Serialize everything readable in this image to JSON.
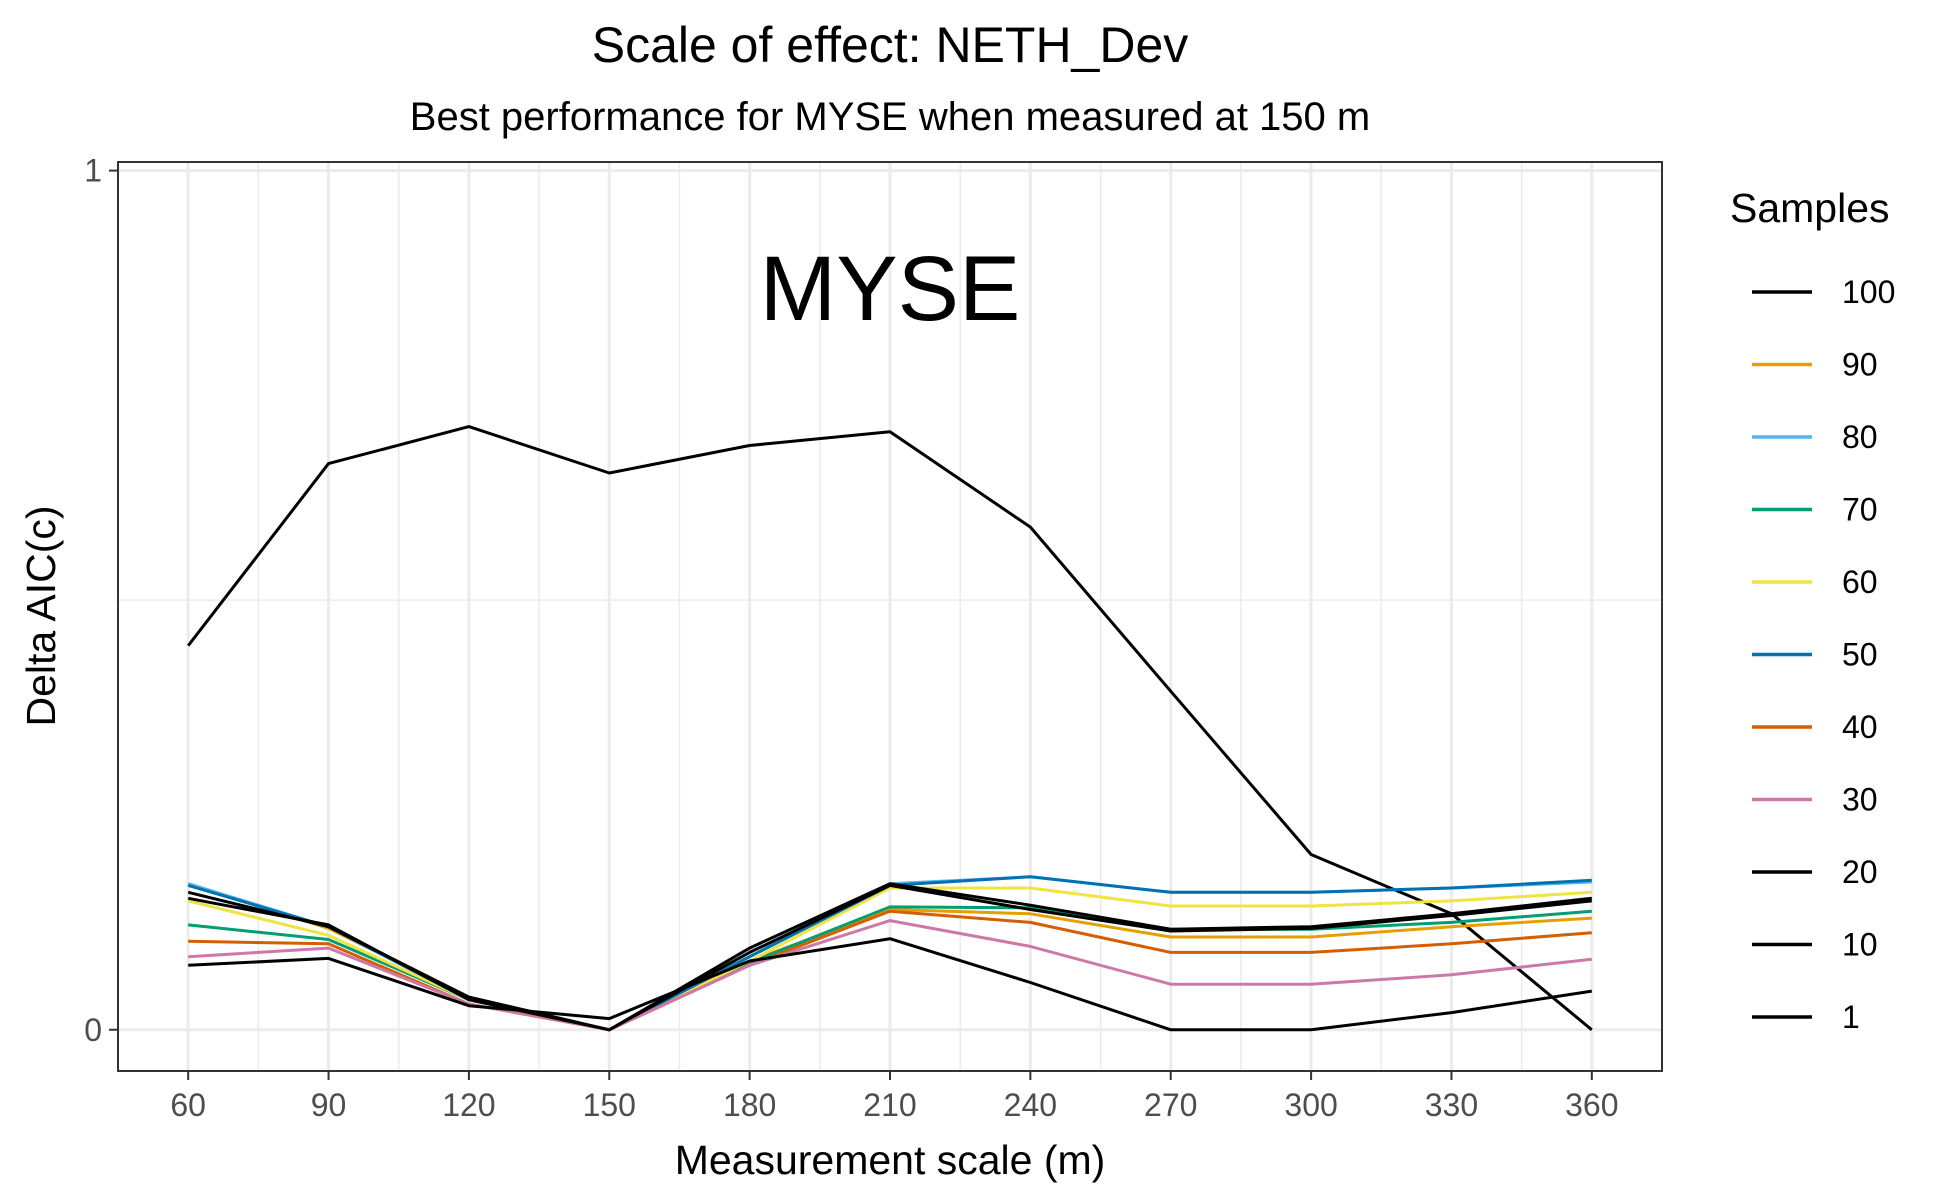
{
  "chart_data": {
    "type": "line",
    "title": "Scale of effect: NETH_Dev",
    "subtitle": "Best performance for MYSE when measured at 150 m",
    "xlabel": "Measurement scale (m)",
    "ylabel": "Delta AIC(c)",
    "annotation": "MYSE",
    "x": [
      60,
      90,
      120,
      150,
      180,
      210,
      240,
      270,
      300,
      330,
      360
    ],
    "xlim": [
      45,
      375
    ],
    "ylim": [
      -0.048,
      1.01
    ],
    "y_ticks": [
      0,
      1
    ],
    "y_tick_labels": [
      "0",
      "1"
    ],
    "grid": true,
    "legend": {
      "title": "Samples",
      "position": "right"
    },
    "series": [
      {
        "name": "100",
        "color": "#000000",
        "values": [
          0.447,
          0.659,
          0.702,
          0.648,
          0.68,
          0.696,
          0.585,
          0.394,
          0.204,
          0.135,
          0.0
        ]
      },
      {
        "name": "90",
        "color": "#E69F00",
        "values": [
          0.17,
          0.118,
          0.038,
          0.0,
          0.08,
          0.14,
          0.135,
          0.108,
          0.108,
          0.12,
          0.13
        ]
      },
      {
        "name": "80",
        "color": "#56B4E9",
        "values": [
          0.17,
          0.12,
          0.035,
          0.0,
          0.085,
          0.17,
          0.178,
          0.16,
          0.16,
          0.165,
          0.172
        ]
      },
      {
        "name": "70",
        "color": "#009E73",
        "values": [
          0.122,
          0.105,
          0.035,
          0.0,
          0.078,
          0.143,
          0.142,
          0.117,
          0.117,
          0.125,
          0.138
        ]
      },
      {
        "name": "60",
        "color": "#F0E442",
        "values": [
          0.15,
          0.11,
          0.035,
          0.0,
          0.08,
          0.165,
          0.165,
          0.144,
          0.144,
          0.15,
          0.16
        ]
      },
      {
        "name": "50",
        "color": "#0072B2",
        "values": [
          0.168,
          0.12,
          0.035,
          0.0,
          0.085,
          0.168,
          0.178,
          0.16,
          0.16,
          0.165,
          0.174
        ]
      },
      {
        "name": "40",
        "color": "#D55E00",
        "values": [
          0.103,
          0.1,
          0.03,
          0.0,
          0.075,
          0.138,
          0.125,
          0.09,
          0.09,
          0.1,
          0.113
        ]
      },
      {
        "name": "30",
        "color": "#CC79A7",
        "values": [
          0.085,
          0.095,
          0.03,
          0.0,
          0.075,
          0.127,
          0.097,
          0.053,
          0.053,
          0.064,
          0.082
        ]
      },
      {
        "name": "20",
        "color": "#000000",
        "values": [
          0.153,
          0.122,
          0.035,
          0.0,
          0.095,
          0.17,
          0.145,
          0.117,
          0.12,
          0.135,
          0.153
        ]
      },
      {
        "name": "10",
        "color": "#000000",
        "values": [
          0.16,
          0.12,
          0.038,
          0.0,
          0.09,
          0.168,
          0.14,
          0.115,
          0.118,
          0.133,
          0.15
        ]
      },
      {
        "name": "1",
        "color": "#000000",
        "values": [
          0.075,
          0.083,
          0.028,
          0.013,
          0.08,
          0.106,
          0.055,
          0.0,
          0.0,
          0.02,
          0.045
        ]
      }
    ]
  }
}
